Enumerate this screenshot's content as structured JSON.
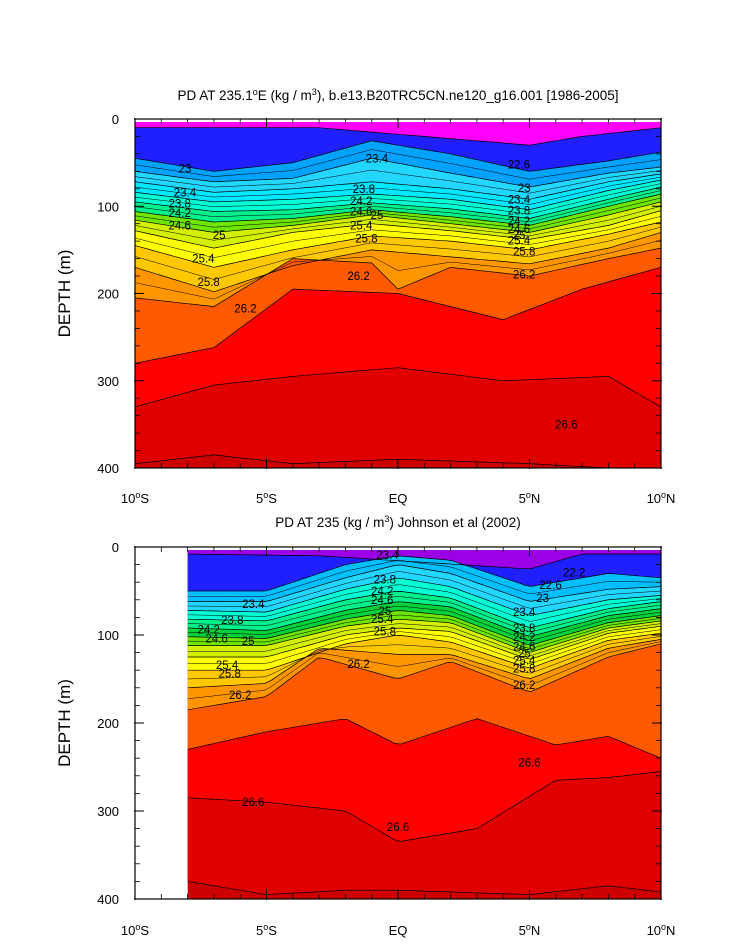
{
  "chart_data": [
    {
      "type": "contour",
      "title": "PD AT 235.1°E (kg / m³), b.e13.B20TRC5CN.ne120_g16.001 [1986-2005]",
      "title_parts": {
        "pre": "PD AT 235.1",
        "sup1": "o",
        "mid": "E (kg / m",
        "sup2": "3",
        "post": "), b.e13.B20TRC5CN.ne120_g16.001 [1986-2005]"
      },
      "ylabel": "DEPTH (m)",
      "xlim": [
        -10,
        10
      ],
      "ylim": [
        0,
        400
      ],
      "y_inverted": true,
      "xticks": [
        {
          "value": -10,
          "num": "10",
          "sup": "o",
          "suf": "S"
        },
        {
          "value": -5,
          "num": "5",
          "sup": "o",
          "suf": "S"
        },
        {
          "value": 0,
          "num": "EQ",
          "sup": "",
          "suf": ""
        },
        {
          "value": 5,
          "num": "5",
          "sup": "o",
          "suf": "N"
        },
        {
          "value": 10,
          "num": "10",
          "sup": "o",
          "suf": "N"
        }
      ],
      "yticks": [
        0,
        100,
        200,
        300,
        400
      ],
      "data_start_lat": -10,
      "contour_labels": [
        {
          "text": "23",
          "lat": -8.1,
          "depth": 57
        },
        {
          "text": "23.4",
          "lat": -8.1,
          "depth": 84
        },
        {
          "text": "23.8",
          "lat": -8.3,
          "depth": 97
        },
        {
          "text": "24.2",
          "lat": -8.3,
          "depth": 108
        },
        {
          "text": "24.6",
          "lat": -8.3,
          "depth": 122
        },
        {
          "text": "25",
          "lat": -6.8,
          "depth": 133
        },
        {
          "text": "25.4",
          "lat": -7.4,
          "depth": 160
        },
        {
          "text": "25.8",
          "lat": -7.2,
          "depth": 187
        },
        {
          "text": "26.2",
          "lat": -5.8,
          "depth": 217
        },
        {
          "text": "23.4",
          "lat": -0.8,
          "depth": 45
        },
        {
          "text": "23.8",
          "lat": -1.3,
          "depth": 80
        },
        {
          "text": "24.2",
          "lat": -1.4,
          "depth": 94
        },
        {
          "text": "24.6",
          "lat": -1.4,
          "depth": 106
        },
        {
          "text": "25",
          "lat": -0.8,
          "depth": 110
        },
        {
          "text": "25.4",
          "lat": -1.4,
          "depth": 122
        },
        {
          "text": "25.8",
          "lat": -1.2,
          "depth": 137
        },
        {
          "text": "26.2",
          "lat": -1.5,
          "depth": 180
        },
        {
          "text": "22.6",
          "lat": 4.6,
          "depth": 52
        },
        {
          "text": "23",
          "lat": 4.8,
          "depth": 79
        },
        {
          "text": "23.4",
          "lat": 4.6,
          "depth": 92
        },
        {
          "text": "23.8",
          "lat": 4.6,
          "depth": 105
        },
        {
          "text": "24.2",
          "lat": 4.6,
          "depth": 117
        },
        {
          "text": "24.6",
          "lat": 4.6,
          "depth": 126
        },
        {
          "text": "25",
          "lat": 4.6,
          "depth": 133
        },
        {
          "text": "25.4",
          "lat": 4.6,
          "depth": 139
        },
        {
          "text": "25.8",
          "lat": 4.8,
          "depth": 152
        },
        {
          "text": "26.2",
          "lat": 4.8,
          "depth": 178
        },
        {
          "text": "26.6",
          "lat": 6.4,
          "depth": 350
        }
      ]
    },
    {
      "type": "contour",
      "title": "PD AT 235 (kg / m³) Johnson et al (2002)",
      "title_parts": {
        "pre": "PD AT 235 (kg / m",
        "sup1": "",
        "mid": "",
        "sup2": "3",
        "post": ") Johnson et al (2002)"
      },
      "ylabel": "DEPTH (m)",
      "xlim": [
        -10,
        10
      ],
      "ylim": [
        0,
        400
      ],
      "y_inverted": true,
      "xticks": [
        {
          "value": -10,
          "num": "10",
          "sup": "o",
          "suf": "S"
        },
        {
          "value": -5,
          "num": "5",
          "sup": "o",
          "suf": "S"
        },
        {
          "value": 0,
          "num": "EQ",
          "sup": "",
          "suf": ""
        },
        {
          "value": 5,
          "num": "5",
          "sup": "o",
          "suf": "N"
        },
        {
          "value": 10,
          "num": "10",
          "sup": "o",
          "suf": "N"
        }
      ],
      "yticks": [
        0,
        100,
        200,
        300,
        400
      ],
      "data_start_lat": -8,
      "contour_labels": [
        {
          "text": "23.4",
          "lat": -5.5,
          "depth": 65
        },
        {
          "text": "23.8",
          "lat": -6.3,
          "depth": 83
        },
        {
          "text": "24.2",
          "lat": -7.2,
          "depth": 94
        },
        {
          "text": "24.6",
          "lat": -6.9,
          "depth": 104
        },
        {
          "text": "25",
          "lat": -5.7,
          "depth": 107
        },
        {
          "text": "25.4",
          "lat": -6.5,
          "depth": 134
        },
        {
          "text": "25.8",
          "lat": -6.4,
          "depth": 144
        },
        {
          "text": "26.2",
          "lat": -6.0,
          "depth": 168
        },
        {
          "text": "23.4",
          "lat": -0.4,
          "depth": 9
        },
        {
          "text": "23.8",
          "lat": -0.5,
          "depth": 37
        },
        {
          "text": "24.2",
          "lat": -0.6,
          "depth": 50
        },
        {
          "text": "24.6",
          "lat": -0.6,
          "depth": 60
        },
        {
          "text": "25",
          "lat": -0.5,
          "depth": 73
        },
        {
          "text": "25.4",
          "lat": -0.6,
          "depth": 82
        },
        {
          "text": "25.8",
          "lat": -0.5,
          "depth": 96
        },
        {
          "text": "26.2",
          "lat": -1.5,
          "depth": 133
        },
        {
          "text": "22.6",
          "lat": 5.8,
          "depth": 43
        },
        {
          "text": "23",
          "lat": 5.5,
          "depth": 58
        },
        {
          "text": "23.4",
          "lat": 4.8,
          "depth": 74
        },
        {
          "text": "23.8",
          "lat": 4.8,
          "depth": 92
        },
        {
          "text": "24.2",
          "lat": 4.8,
          "depth": 102
        },
        {
          "text": "24.6",
          "lat": 4.8,
          "depth": 113
        },
        {
          "text": "25",
          "lat": 4.8,
          "depth": 121
        },
        {
          "text": "25.4",
          "lat": 4.8,
          "depth": 129
        },
        {
          "text": "25.8",
          "lat": 4.8,
          "depth": 138
        },
        {
          "text": "26.2",
          "lat": 4.8,
          "depth": 157
        },
        {
          "text": "22.2",
          "lat": 6.7,
          "depth": 29
        },
        {
          "text": "26.6",
          "lat": -5.5,
          "depth": 290
        },
        {
          "text": "26.6",
          "lat": 0.0,
          "depth": 318
        },
        {
          "text": "26.6",
          "lat": 5.0,
          "depth": 245
        }
      ]
    }
  ]
}
